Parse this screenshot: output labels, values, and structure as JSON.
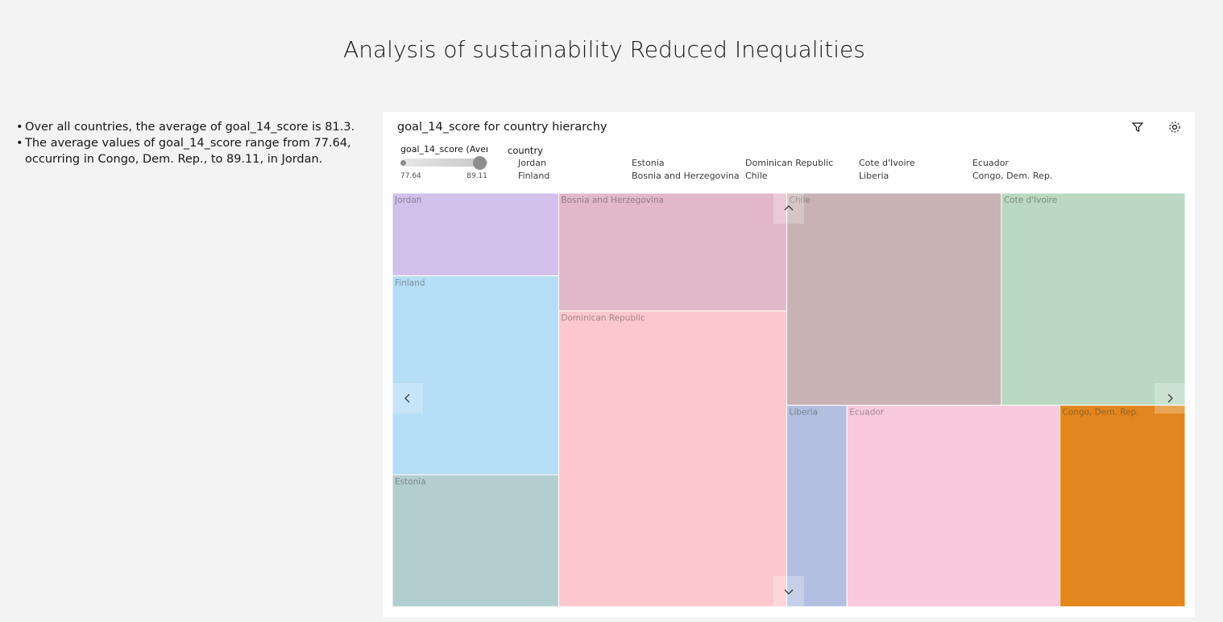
{
  "header": {
    "title": "Analysis of sustainability Reduced Inequalities"
  },
  "insights": [
    "Over all countries, the average of goal_14_score is 81.3.",
    "The average values of goal_14_score range from 77.64, occurring in Congo, Dem. Rep., to 89.11, in Jordan."
  ],
  "chart_data": {
    "type": "treemap",
    "title": "goal_14_score for country hierarchy",
    "color_legend": {
      "title": "goal_14_score (Aver",
      "min": 77.64,
      "max": 89.11
    },
    "legend_title": "country",
    "categories": [
      "Jordan",
      "Finland",
      "Estonia",
      "Bosnia and Herzegovina",
      "Dominican Republic",
      "Chile",
      "Cote d'Ivoire",
      "Liberia",
      "Ecuador",
      "Congo, Dem. Rep."
    ],
    "values": [
      4.2,
      10.1,
      6.7,
      8.2,
      20.6,
      13.9,
      11.9,
      3.7,
      13.1,
      7.7
    ],
    "colors": [
      "#d2bfea",
      "#b5ddf6",
      "#b3ced1",
      "#e2b8c9",
      "#fcc8cd",
      "#c8b2b4",
      "#bad8c2",
      "#b3bfe0",
      "#f9c9de",
      "#e2861d"
    ]
  }
}
